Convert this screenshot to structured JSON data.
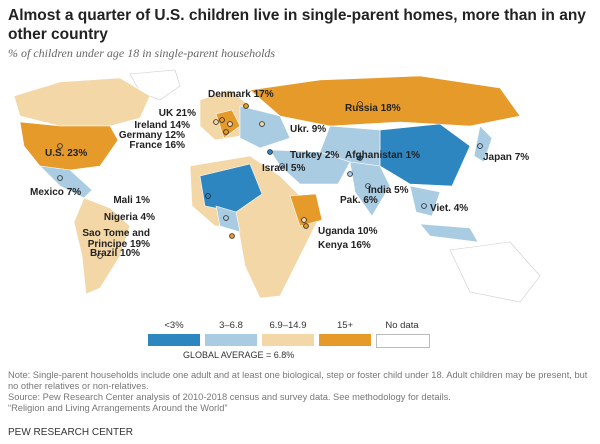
{
  "chart_data": {
    "type": "map",
    "title": "Almost a quarter of U.S. children live in single-parent homes, more than in any other country",
    "subtitle": "% of children under age 18 in single-parent households",
    "categories": [
      "Denmark",
      "Russia",
      "UK",
      "Ireland",
      "Ukr.",
      "Germany",
      "France",
      "Turkey",
      "Afghanistan",
      "Japan",
      "U.S.",
      "Israel",
      "India",
      "Mexico",
      "Mali",
      "Pak.",
      "Viet.",
      "Nigeria",
      "Sao Tome and Principe",
      "Uganda",
      "Kenya",
      "Brazil"
    ],
    "values": [
      17,
      18,
      21,
      14,
      9,
      12,
      16,
      2,
      1,
      7,
      23,
      5,
      5,
      7,
      1,
      6,
      4,
      4,
      19,
      10,
      16,
      10
    ],
    "value_labels": [
      "17%",
      "18%",
      "21%",
      "14%",
      "9%",
      "12%",
      "16%",
      "2%",
      "1%",
      "7%",
      "23%",
      "5%",
      "5%",
      "7%",
      "1%",
      "6%",
      "4%",
      "4%",
      "19%",
      "10%",
      "16%",
      "10%"
    ],
    "colors": [
      "#e59a2a",
      "#e59a2a",
      "#e59a2a",
      "#f3d7a6",
      "#f3d7a6",
      "#f3d7a6",
      "#e59a2a",
      "#2e86c1",
      "#2e86c1",
      "#a9cce3",
      "#e59a2a",
      "#a9cce3",
      "#a9cce3",
      "#a9cce3",
      "#2e86c1",
      "#a9cce3",
      "#a9cce3",
      "#a9cce3",
      "#e59a2a",
      "#f3d7a6",
      "#e59a2a",
      "#f3d7a6"
    ],
    "legend": [
      {
        "label": "<3%",
        "color": "#2e86c1"
      },
      {
        "label": "3–6.8",
        "color": "#a9cce3"
      },
      {
        "label": "6.9–14.9",
        "color": "#f3d7a6"
      },
      {
        "label": "15+",
        "color": "#e59a2a"
      },
      {
        "label": "No data",
        "color": "#ffffff"
      }
    ],
    "annotation": "GLOBAL AVERAGE = 6.8%"
  },
  "notes": [
    "Note: Single-parent households include one adult and at least one biological, step or foster child under 18. Adult children may be present, but no other relatives or non-relatives.",
    "Source: Pew Research Center analysis of 2010-2018 census and survey data. See methodology for details.",
    "“Religion and Living Arrangements Around the World”"
  ],
  "source_org": "PEW RESEARCH CENTER"
}
